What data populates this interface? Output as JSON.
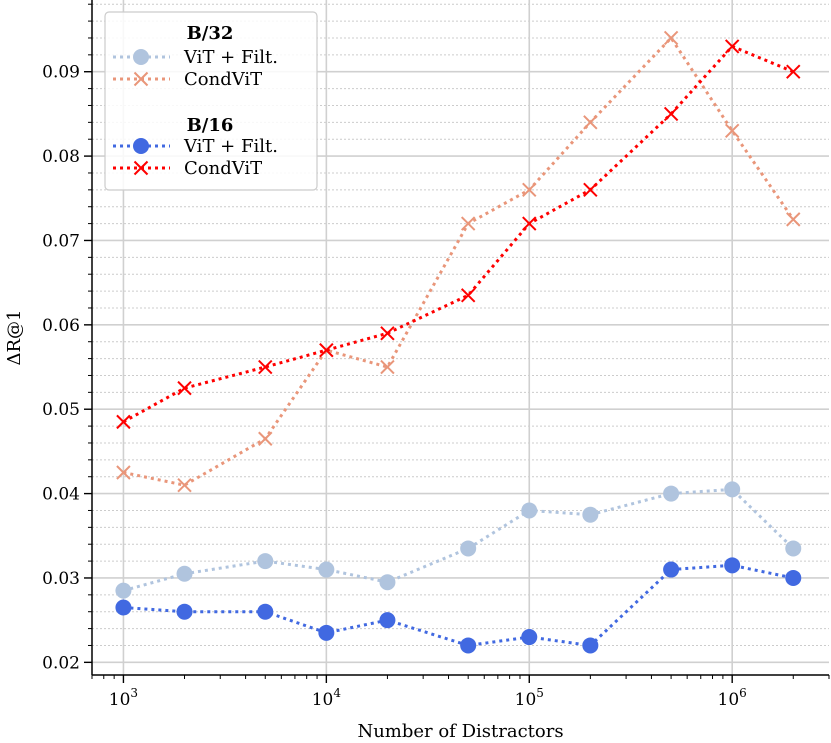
{
  "chart_data": {
    "type": "line",
    "title": "",
    "xlabel": "Number of Distractors",
    "ylabel": "ΔR@1",
    "xscale": "log",
    "xlim": [
      700,
      3000000
    ],
    "ylim": [
      0.0185,
      0.0985
    ],
    "x_ticks": [
      {
        "value": 1000,
        "base": "10",
        "exp": "3"
      },
      {
        "value": 10000,
        "base": "10",
        "exp": "4"
      },
      {
        "value": 100000,
        "base": "10",
        "exp": "5"
      },
      {
        "value": 1000000,
        "base": "10",
        "exp": "6"
      }
    ],
    "y_ticks": [
      {
        "value": 0.02,
        "label": "0.02"
      },
      {
        "value": 0.03,
        "label": "0.03"
      },
      {
        "value": 0.04,
        "label": "0.04"
      },
      {
        "value": 0.05,
        "label": "0.05"
      },
      {
        "value": 0.06,
        "label": "0.06"
      },
      {
        "value": 0.07,
        "label": "0.07"
      },
      {
        "value": 0.08,
        "label": "0.08"
      },
      {
        "value": 0.09,
        "label": "0.09"
      }
    ],
    "grid": true,
    "x": [
      1000,
      2000,
      5000,
      10000,
      20000,
      50000,
      100000,
      200000,
      500000,
      1000000,
      2000000
    ],
    "series": [
      {
        "name": "ViT + Filt.",
        "group": "B/32",
        "marker": "circle",
        "color": "#b0c4de",
        "values": [
          0.0285,
          0.0305,
          0.032,
          0.031,
          0.0295,
          0.0335,
          0.038,
          0.0375,
          0.04,
          0.0405,
          0.0335
        ]
      },
      {
        "name": "CondViT",
        "group": "B/32",
        "marker": "x",
        "color": "#e9967a",
        "values": [
          0.0425,
          0.041,
          0.0465,
          0.057,
          0.055,
          0.072,
          0.076,
          0.084,
          0.094,
          0.083,
          0.0725
        ]
      },
      {
        "name": "ViT + Filt.",
        "group": "B/16",
        "marker": "circle",
        "color": "#4169e1",
        "values": [
          0.0265,
          0.026,
          0.026,
          0.0235,
          0.025,
          0.022,
          0.023,
          0.022,
          0.031,
          0.0315,
          0.03
        ]
      },
      {
        "name": "CondViT",
        "group": "B/16",
        "marker": "x",
        "color": "#ff0000",
        "values": [
          0.0485,
          0.0525,
          0.055,
          0.057,
          0.059,
          0.0635,
          0.072,
          0.076,
          0.085,
          0.093,
          0.09
        ]
      }
    ],
    "legend": {
      "placement": "top-left",
      "groups": [
        {
          "title": "B/32",
          "series": [
            0,
            1
          ]
        },
        {
          "title": "B/16",
          "series": [
            2,
            3
          ]
        }
      ]
    }
  }
}
